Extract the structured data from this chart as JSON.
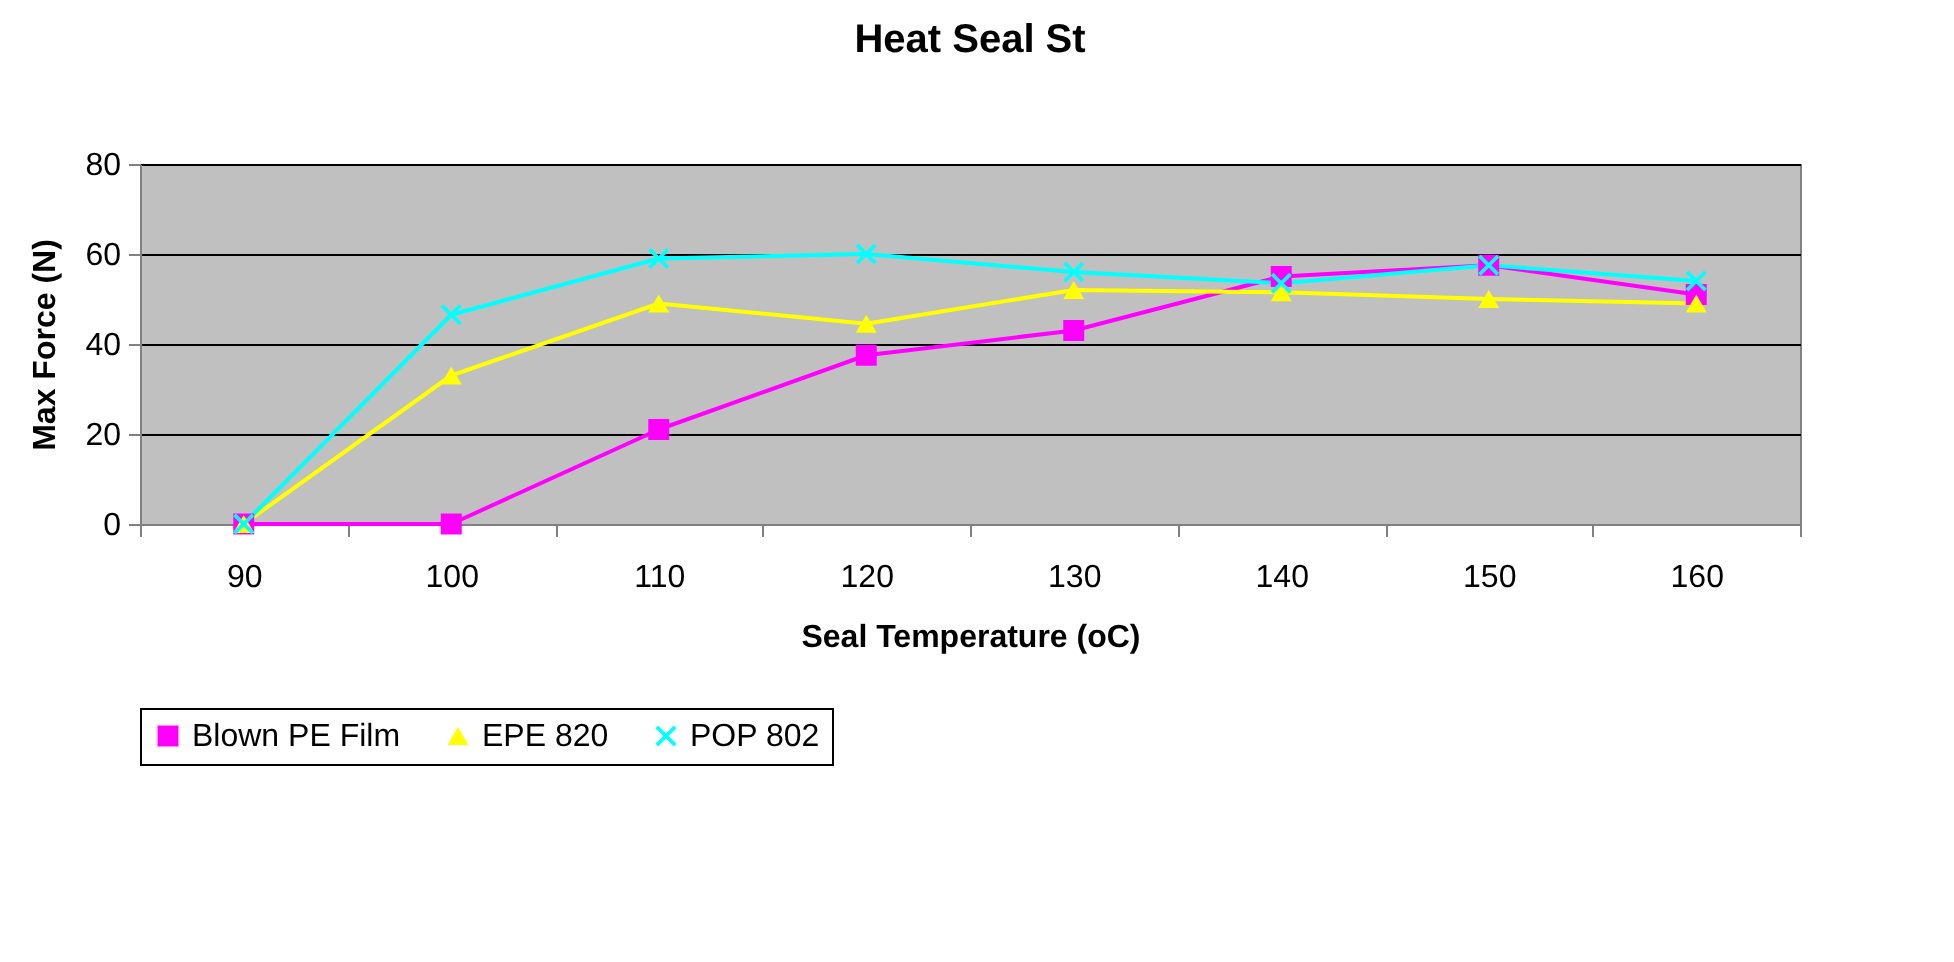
{
  "chart_data": {
    "type": "line",
    "title": "Heat Seal St",
    "xlabel": "Seal Temperature (oC)",
    "ylabel": "Max Force (N)",
    "categories": [
      "90",
      "100",
      "110",
      "120",
      "130",
      "140",
      "150",
      "160"
    ],
    "series": [
      {
        "name": "Blown PE Film",
        "color": "#ff00ff",
        "marker": "square",
        "values": [
          0,
          0,
          21,
          37.5,
          43,
          55,
          57.5,
          51
        ]
      },
      {
        "name": "EPE 820",
        "color": "#ffff00",
        "marker": "triangle",
        "values": [
          0,
          33,
          49,
          44.5,
          52,
          51.5,
          50,
          49
        ]
      },
      {
        "name": "POP 802",
        "color": "#00ffff",
        "marker": "cross",
        "values": [
          0,
          46.5,
          59,
          60,
          56,
          53.5,
          57.5,
          54
        ]
      }
    ],
    "ylim": [
      0,
      80
    ],
    "yticks": [
      0,
      20,
      40,
      60,
      80
    ],
    "grid": "y",
    "legend": "bottom",
    "line_style": "solid"
  }
}
